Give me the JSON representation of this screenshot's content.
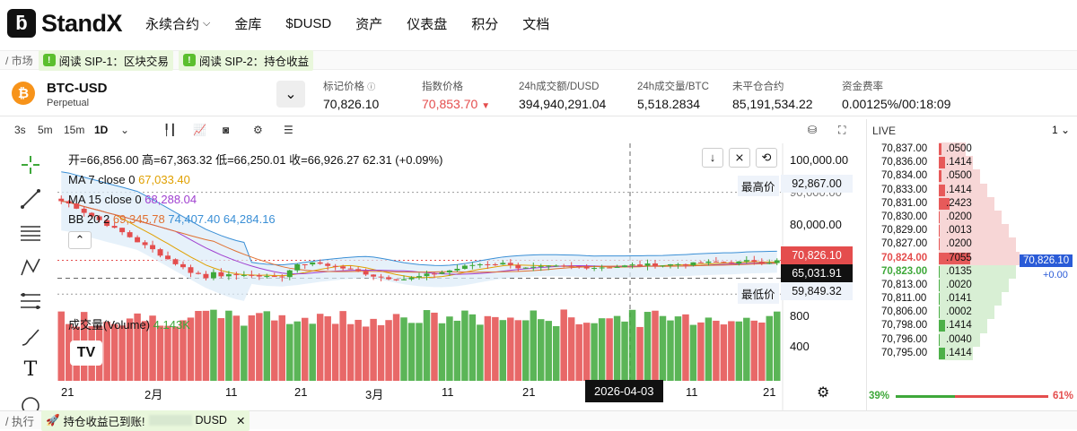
{
  "brand": {
    "name": "StandX"
  },
  "nav": [
    "永续合约",
    "金库",
    "$DUSD",
    "资产",
    "仪表盘",
    "积分",
    "文档"
  ],
  "subbar": {
    "market": "/ 市场",
    "sip1": "阅读 SIP-1：区块交易",
    "sip2": "阅读 SIP-2：持仓收益"
  },
  "market": {
    "symbol": "BTC-USD",
    "type": "Perpetual",
    "mark": {
      "label": "标记价格",
      "value": "70,826.10"
    },
    "index": {
      "label": "指数价格",
      "value": "70,853.70"
    },
    "turnover": {
      "label": "24h成交额/DUSD",
      "value": "394,940,291.04"
    },
    "volume": {
      "label": "24h成交量/BTC",
      "value": "5,518.2834"
    },
    "oi": {
      "label": "未平仓合约",
      "value": "85,191,534.22"
    },
    "funding": {
      "label": "资金费率",
      "value": "0.00125%/00:18:09"
    }
  },
  "chartbar": {
    "intervals": [
      "3s",
      "5m",
      "15m",
      "1D"
    ],
    "selected": "1D"
  },
  "legend": {
    "ohlc": "开=66,856.00 高=67,363.32 低=66,250.01 收=66,926.27 62.31 (+0.09%)",
    "ma7_label": "MA 7 close 0",
    "ma7_val": "67,033.40",
    "ma15_label": "MA 15 close 0",
    "ma15_val": "68,288.04",
    "bb_label": "BB 20 2",
    "bb_v1": "69,345.78",
    "bb_v2": "74,407.40",
    "bb_v3": "64,284.16",
    "vol_label": "成交量(Volume)",
    "vol_val": "4.143K"
  },
  "price_axis": {
    "ticks": [
      "100,000.00",
      "90,000.00",
      "80,000.00",
      "800",
      "400"
    ],
    "high_label": "最高价",
    "high": "92,867.00",
    "low_label": "最低价",
    "low": "59,849.32",
    "last": "70,826.10",
    "cursor": "65,031.91"
  },
  "time_axis": {
    "ticks": [
      "21",
      "2月",
      "11",
      "21",
      "3月",
      "11",
      "21",
      "11",
      "21"
    ],
    "cursor": "2026-04-03"
  },
  "orderbook": {
    "title": "LIVE",
    "depth": "1",
    "asks": [
      [
        "70,837.00",
        ".0500"
      ],
      [
        "70,836.00",
        ".1414"
      ],
      [
        "70,834.00",
        ".0500"
      ],
      [
        "70,833.00",
        ".1414"
      ],
      [
        "70,831.00",
        ".2423"
      ],
      [
        "70,830.00",
        ".0200"
      ],
      [
        "70,829.00",
        ".0013"
      ],
      [
        "70,827.00",
        ".0200"
      ],
      [
        "70,824.00",
        ".7055"
      ]
    ],
    "bids": [
      [
        "70,823.00",
        ".0135"
      ],
      [
        "70,813.00",
        ".0020"
      ],
      [
        "70,811.00",
        ".0141"
      ],
      [
        "70,806.00",
        ".0002"
      ],
      [
        "70,798.00",
        ".1414"
      ],
      [
        "70,796.00",
        ".0040"
      ],
      [
        "70,795.00",
        ".1414"
      ]
    ],
    "mid": "70,826.10",
    "mid_change": "+0.00",
    "buy_pct": "39%",
    "sell_pct": "61%",
    "buy_ratio": 0.39
  },
  "bottom": {
    "exec": "/ 执行",
    "msg": "持仓收益已到账!",
    "unit": "DUSD",
    "close": "✕"
  },
  "colors": {
    "up": "#3ea83a",
    "down": "#e44d4d",
    "blue": "#2a5bd7"
  }
}
